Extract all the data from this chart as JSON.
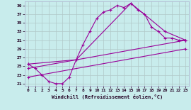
{
  "xlabel": "Windchill (Refroidissement éolien,°C)",
  "xlim": [
    -0.5,
    23.5
  ],
  "ylim": [
    20.5,
    40
  ],
  "yticks": [
    21,
    23,
    25,
    27,
    29,
    31,
    33,
    35,
    37,
    39
  ],
  "xticks": [
    0,
    1,
    2,
    3,
    4,
    5,
    6,
    7,
    8,
    9,
    10,
    11,
    12,
    13,
    14,
    15,
    16,
    17,
    18,
    19,
    20,
    21,
    22,
    23
  ],
  "bg_color": "#c8ecec",
  "grid_color": "#b0c8c8",
  "line_color": "#990099",
  "line1_x": [
    0,
    1,
    2,
    3,
    4,
    5,
    6,
    7,
    8,
    9,
    10,
    11,
    12,
    13,
    14,
    15,
    16,
    17,
    18,
    19,
    20,
    21,
    22,
    23
  ],
  "line1_y": [
    25.5,
    24.5,
    23.0,
    21.5,
    21.0,
    21.0,
    22.5,
    26.5,
    30.0,
    33.0,
    36.0,
    37.5,
    38.0,
    39.0,
    38.5,
    39.5,
    38.0,
    37.0,
    34.0,
    33.0,
    31.5,
    31.5,
    31.0,
    31.0
  ],
  "line2_x": [
    0,
    7,
    15,
    20,
    23
  ],
  "line2_y": [
    25.5,
    26.5,
    39.5,
    33.0,
    31.0
  ],
  "line3_x": [
    0,
    23
  ],
  "line3_y": [
    24.5,
    31.0
  ],
  "line4_x": [
    0,
    23
  ],
  "line4_y": [
    22.5,
    29.0
  ]
}
